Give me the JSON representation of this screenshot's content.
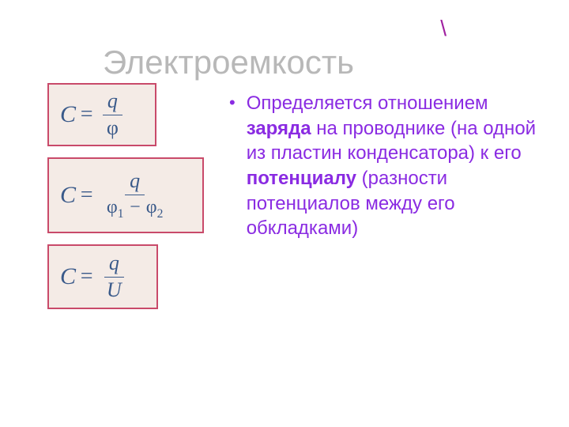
{
  "decor": {
    "backslash": "\\"
  },
  "title": "Электроемкость",
  "formulas": {
    "f1": {
      "lhs": "C",
      "num": "q",
      "den": "φ"
    },
    "f2": {
      "lhs": "C",
      "num": "q",
      "den_left": "φ",
      "sub1": "1",
      "minus": " − ",
      "den_right": "φ",
      "sub2": "2"
    },
    "f3": {
      "lhs": "C",
      "num": "q",
      "den": "U"
    }
  },
  "text": {
    "p1": "Определяется отношением ",
    "b1": "заряда",
    "p2": " на проводнике (на одной из пластин конденсатора) к его ",
    "b2": "потенциалу",
    "p3": " (разности потенциалов между его обкладками)"
  },
  "colors": {
    "title_gray": "#b8b8b8",
    "purple": "#8a2be2",
    "formula_border": "#c94a6a",
    "formula_bg": "#f4ebe6",
    "formula_text": "#3a5a8a"
  }
}
